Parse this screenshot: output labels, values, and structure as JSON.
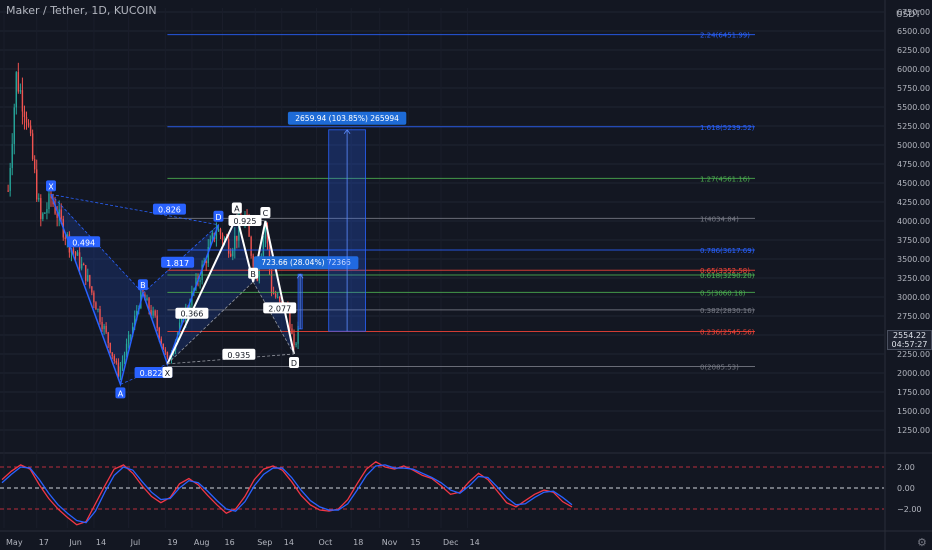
{
  "header": {
    "title": "Maker / Tether, 1D, KUCOIN",
    "unit": "USDT"
  },
  "colors": {
    "background": "#131722",
    "up": "#26a69a",
    "down": "#ef5350",
    "pattern_line": "#2962ff",
    "pattern_fill": "rgba(41,98,255,0.18)",
    "white_line": "#ffffff",
    "fib_blue": "#2962ff",
    "fib_green": "#4caf50",
    "fib_red": "#f44336",
    "fib_gray": "#787b86",
    "osc_red": "#f23645",
    "osc_blue": "#2962ff",
    "target_box": "rgba(41,98,255,0.25)"
  },
  "price_tag": {
    "price": "2554.22",
    "countdown": "04:57:27"
  },
  "settings_icon": "gear-icon",
  "chart_data": [
    {
      "type": "candlestick",
      "title": "Maker / Tether, 1D, KUCOIN",
      "y_axis_unit": "USDT",
      "y_ticks": [
        "6750.00",
        "6500.00",
        "6250.00",
        "6000.00",
        "5750.00",
        "5500.00",
        "5250.00",
        "5000.00",
        "4750.00",
        "4500.00",
        "4250.00",
        "4000.00",
        "3750.00",
        "3500.00",
        "3250.00",
        "3000.00",
        "2750.00",
        "2500.00",
        "2250.00",
        "2000.00",
        "1750.00",
        "1500.00",
        "1250.00"
      ],
      "y_tick_values": [
        6750,
        6500,
        6250,
        6000,
        5750,
        5500,
        5250,
        5000,
        4750,
        4500,
        4250,
        4000,
        3750,
        3500,
        3250,
        3000,
        2750,
        2500,
        2250,
        2000,
        1750,
        1500,
        1250
      ],
      "x_ticks": [
        "May",
        "17",
        "Jun",
        "14",
        "Jul",
        "19",
        "Aug",
        "16",
        "Sep",
        "14",
        "Oct",
        "18",
        "Nov",
        "15",
        "Dec",
        "14"
      ],
      "ylim": [
        1080,
        6900
      ],
      "ohlc_anchors": [
        {
          "date": "2021-05-03",
          "close": 4400
        },
        {
          "date": "2021-05-07",
          "close": 5900
        },
        {
          "date": "2021-05-12",
          "close": 5400
        },
        {
          "date": "2021-05-19",
          "close": 4000
        },
        {
          "date": "2021-05-24",
          "close": 4300
        },
        {
          "date": "2021-06-02",
          "close": 3700
        },
        {
          "date": "2021-06-10",
          "close": 3300
        },
        {
          "date": "2021-06-20",
          "close": 2500
        },
        {
          "date": "2021-06-26",
          "close": 2000
        },
        {
          "date": "2021-07-03",
          "close": 2600
        },
        {
          "date": "2021-07-07",
          "close": 3050
        },
        {
          "date": "2021-07-14",
          "close": 2700
        },
        {
          "date": "2021-07-20",
          "close": 2150
        },
        {
          "date": "2021-07-28",
          "close": 2750
        },
        {
          "date": "2021-08-05",
          "close": 3300
        },
        {
          "date": "2021-08-13",
          "close": 3900
        },
        {
          "date": "2021-08-20",
          "close": 3650
        },
        {
          "date": "2021-08-27",
          "close": 4050
        },
        {
          "date": "2021-08-30",
          "close": 3600
        },
        {
          "date": "2021-09-02",
          "close": 3300
        },
        {
          "date": "2021-09-06",
          "close": 3950
        },
        {
          "date": "2021-09-09",
          "close": 3100
        },
        {
          "date": "2021-09-13",
          "close": 2900
        },
        {
          "date": "2021-09-17",
          "close": 2850
        },
        {
          "date": "2021-09-20",
          "close": 2300
        },
        {
          "date": "2021-09-22",
          "close": 2554.22
        }
      ],
      "patterns": [
        {
          "name": "bat-1",
          "points": [
            {
              "label": "X",
              "date": "2021-05-24",
              "price": 4350
            },
            {
              "label": "A",
              "date": "2021-06-27",
              "price": 1850
            },
            {
              "label": "B",
              "date": "2021-07-08",
              "price": 3050
            },
            {
              "label": "C",
              "date": "2021-07-20",
              "price": 2120
            },
            {
              "label": "D",
              "date": "2021-08-14",
              "price": 3950
            }
          ],
          "ratios": [
            {
              "text": "0.494",
              "date": "2021-06-09",
              "price": 3720
            },
            {
              "text": "0.826",
              "date": "2021-07-21",
              "price": 4150
            },
            {
              "text": "1.817",
              "date": "2021-07-25",
              "price": 3450
            },
            {
              "text": "0.822",
              "date": "2021-07-12",
              "price": 2000
            }
          ]
        },
        {
          "name": "bat-2",
          "points": [
            {
              "label": "X",
              "date": "2021-07-20",
              "price": 2120
            },
            {
              "label": "A",
              "date": "2021-08-23",
              "price": 4060
            },
            {
              "label": "B",
              "date": "2021-08-31",
              "price": 3200
            },
            {
              "label": "C",
              "date": "2021-09-06",
              "price": 4000
            },
            {
              "label": "D",
              "date": "2021-09-20",
              "price": 2250
            }
          ],
          "ratios": [
            {
              "text": "0.925",
              "date": "2021-08-27",
              "price": 4000
            },
            {
              "text": "0.366",
              "date": "2021-08-01",
              "price": 2780
            },
            {
              "text": "2.077",
              "date": "2021-09-13",
              "price": 2850
            },
            {
              "text": "0.935",
              "date": "2021-08-24",
              "price": 2240
            }
          ]
        }
      ],
      "fib_levels": [
        {
          "ratio": "2.24",
          "price": 6451.99,
          "label": "2.24(6451.99)",
          "color": "#2962ff"
        },
        {
          "ratio": "1.618",
          "price": 5239.52,
          "label": "1.618(5239.52)",
          "color": "#2962ff"
        },
        {
          "ratio": "1.27",
          "price": 4561.16,
          "label": "1.27(4561.16)",
          "color": "#4caf50"
        },
        {
          "ratio": "1",
          "price": 4034.84,
          "label": "1(4034.84)",
          "color": "#787b86"
        },
        {
          "ratio": "0.786",
          "price": 3617.69,
          "label": "0.786(3617.69)",
          "color": "#2962ff"
        },
        {
          "ratio": "0.65",
          "price": 3352.58,
          "label": "0.65(3352.58)",
          "color": "#f44336"
        },
        {
          "ratio": "0.618",
          "price": 3290.2,
          "label": "0.618(3290.20)",
          "color": "#4caf50"
        },
        {
          "ratio": "0.5",
          "price": 3060.18,
          "label": "0.5(3060.18)",
          "color": "#4caf50"
        },
        {
          "ratio": "0.382",
          "price": 2830.16,
          "label": "0.382(2830.16)",
          "color": "#787b86"
        },
        {
          "ratio": "0.236",
          "price": 2545.56,
          "label": "0.236(2545.56)",
          "color": "#f44336"
        },
        {
          "ratio": "0",
          "price": 2085.53,
          "label": "0(2085.53)",
          "color": "#787b86"
        }
      ],
      "measure_boxes": [
        {
          "text": "723.66 (28.04%) 72366",
          "from_date": "2021-09-22",
          "to_date": "2021-09-24",
          "from_price": 2580,
          "to_price": 3300
        },
        {
          "text": "2659.94 (103.85%) 265994",
          "from_date": "2021-10-07",
          "to_date": "2021-10-25",
          "from_price": 2550,
          "to_price": 5200
        }
      ],
      "oscillator": {
        "y_ticks": [
          "2.00",
          "0.00",
          "−2.00"
        ],
        "y_tick_values": [
          2,
          0,
          -2
        ],
        "upper_band": 2,
        "lower_band": -2,
        "zero": 0,
        "series": [
          {
            "color": "#f23645",
            "values": [
              0.8,
              1.6,
              2.2,
              1.8,
              0.3,
              -1.0,
              -2.0,
              -2.8,
              -3.5,
              -3.2,
              -1.5,
              0.2,
              1.8,
              2.2,
              1.4,
              0.2,
              -0.8,
              -1.4,
              -0.9,
              0.4,
              0.9,
              0.3,
              -0.7,
              -1.6,
              -2.4,
              -2.0,
              -0.8,
              0.8,
              1.8,
              2.1,
              1.7,
              0.6,
              -0.7,
              -1.6,
              -2.1,
              -2.2,
              -2.0,
              -1.1,
              0.4,
              1.8,
              2.5,
              2.0,
              1.8,
              2.1,
              1.7,
              1.2,
              0.9,
              0.2,
              -0.6,
              -0.4,
              0.6,
              1.4,
              0.8,
              -0.3,
              -1.4,
              -1.8,
              -1.2,
              -0.6,
              -0.2,
              -0.4,
              -1.3,
              -1.8
            ]
          },
          {
            "color": "#2962ff",
            "values": [
              0.5,
              1.3,
              2.0,
              1.9,
              0.8,
              -0.5,
              -1.6,
              -2.4,
              -3.1,
              -3.3,
              -2.2,
              -0.4,
              1.2,
              2.0,
              1.7,
              0.6,
              -0.4,
              -1.1,
              -1.0,
              0.0,
              0.7,
              0.5,
              -0.3,
              -1.2,
              -2.0,
              -2.2,
              -1.3,
              0.2,
              1.3,
              1.9,
              1.9,
              1.0,
              -0.2,
              -1.2,
              -1.8,
              -2.1,
              -2.1,
              -1.5,
              -0.2,
              1.2,
              2.1,
              2.2,
              1.9,
              1.9,
              1.8,
              1.4,
              1.0,
              0.5,
              -0.2,
              -0.5,
              0.2,
              1.1,
              1.0,
              0.1,
              -0.9,
              -1.6,
              -1.5,
              -0.9,
              -0.4,
              -0.3,
              -0.9,
              -1.6
            ]
          }
        ]
      }
    }
  ]
}
